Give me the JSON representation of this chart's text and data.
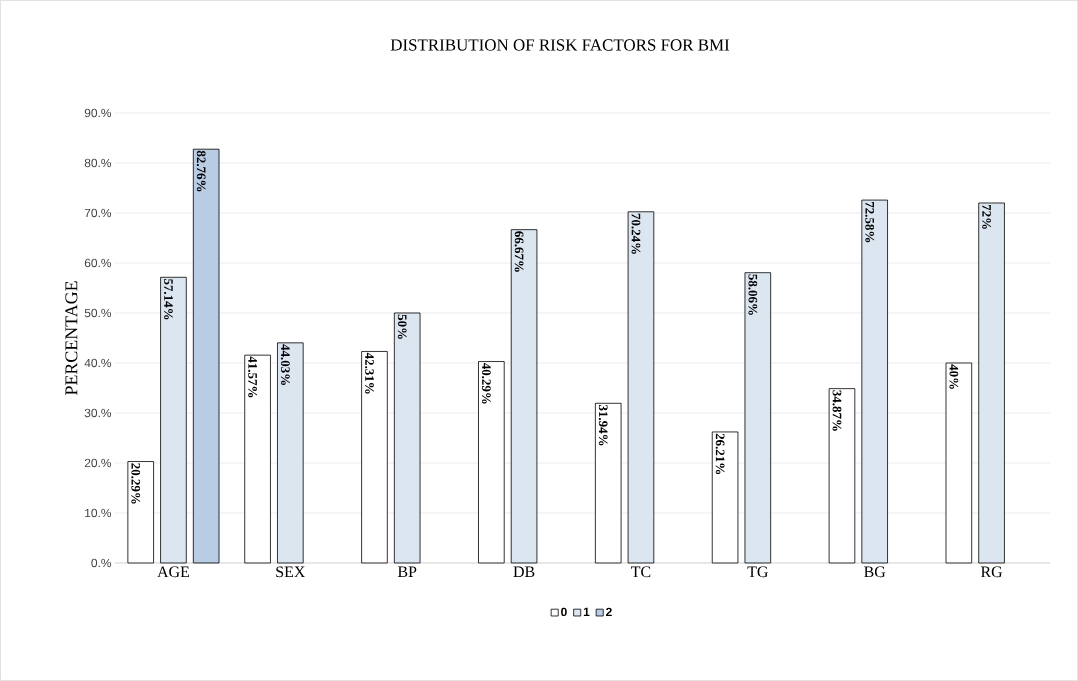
{
  "chart_data": {
    "type": "bar",
    "title": "DISTRIBUTION OF RISK FACTORS FOR BMI",
    "ylabel": "PERCENTAGE",
    "categories": [
      "AGE",
      "SEX",
      "BP",
      "DB",
      "TC",
      "TG",
      "BG",
      "RG"
    ],
    "series": [
      {
        "name": "0",
        "color": "#ffffff",
        "values": [
          20.29,
          41.57,
          42.31,
          40.29,
          31.94,
          26.21,
          34.87,
          40
        ],
        "value_labels": [
          "20.29%",
          "41.57%",
          "42.31%",
          "40.29%",
          "31.94%",
          "26.21%",
          "34.87%",
          "40%"
        ]
      },
      {
        "name": "1",
        "color": "#dce6f1",
        "values": [
          57.14,
          44.03,
          50,
          66.67,
          70.24,
          58.06,
          72.58,
          72
        ],
        "value_labels": [
          "57.14%",
          "44.03%",
          "50%",
          "66.67%",
          "70.24%",
          "58.06%",
          "72.58%",
          "72%"
        ]
      },
      {
        "name": "2",
        "color": "#b8cce4",
        "values": [
          82.76,
          null,
          null,
          null,
          null,
          null,
          null,
          null
        ],
        "value_labels": [
          "82.76%",
          null,
          null,
          null,
          null,
          null,
          null,
          null
        ]
      }
    ],
    "ylim": [
      0,
      90
    ],
    "yticks": [
      {
        "value": 0,
        "label": "0.%"
      },
      {
        "value": 10,
        "label": "10.%"
      },
      {
        "value": 20,
        "label": "20.%"
      },
      {
        "value": 30,
        "label": "30.%"
      },
      {
        "value": 40,
        "label": "40.%"
      },
      {
        "value": 50,
        "label": "50.%"
      },
      {
        "value": 60,
        "label": "60.%"
      },
      {
        "value": 70,
        "label": "70.%"
      },
      {
        "value": 80,
        "label": "80.%"
      },
      {
        "value": 90,
        "label": "90.%"
      }
    ],
    "grid": "y",
    "legend": "bottom"
  }
}
